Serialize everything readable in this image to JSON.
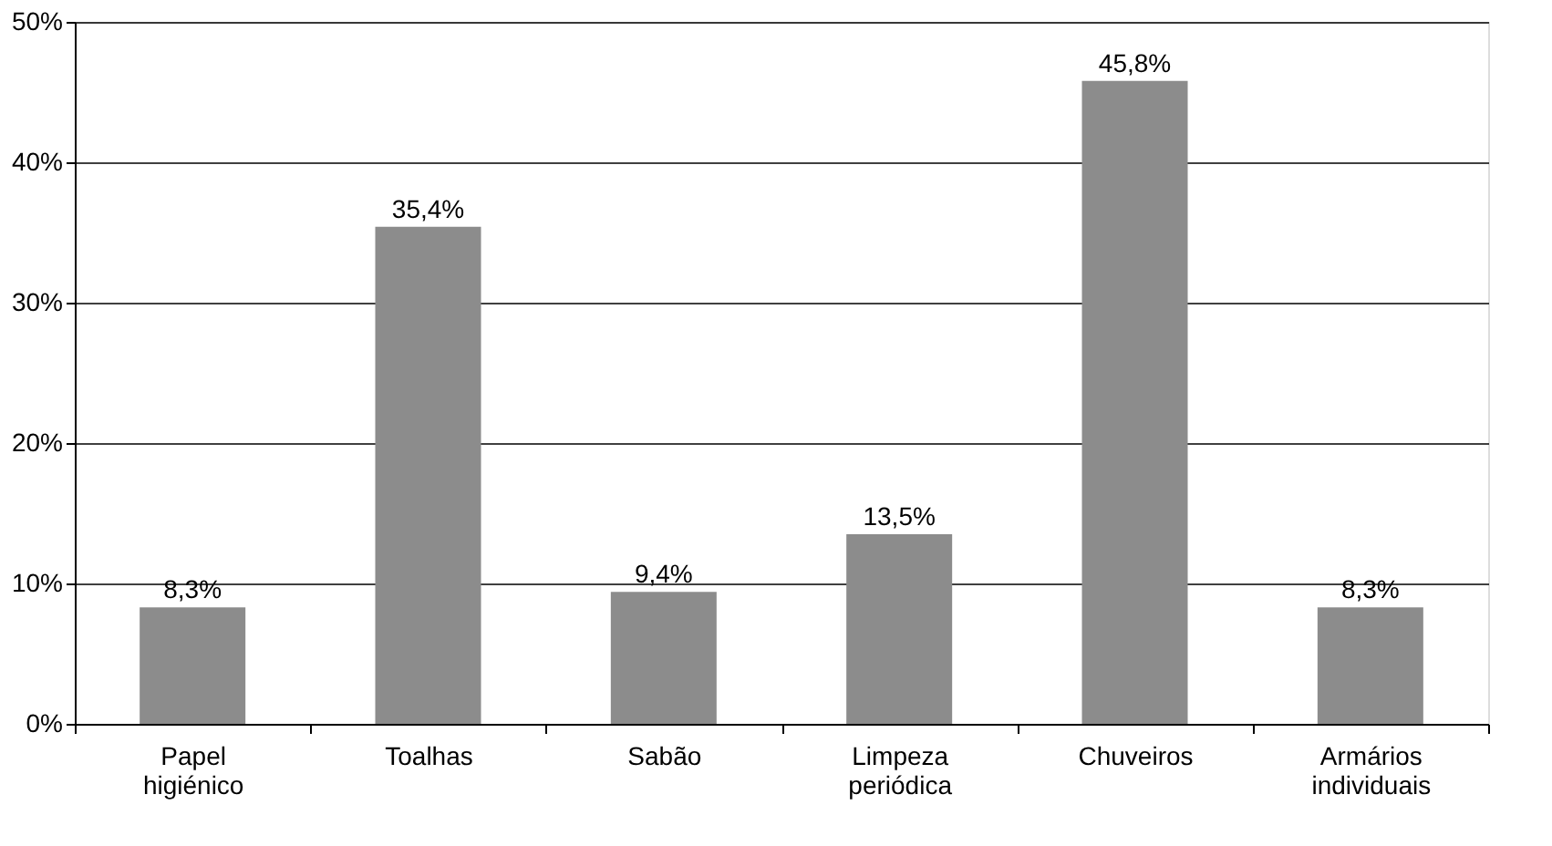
{
  "chart_data": {
    "type": "bar",
    "categories": [
      "Papel higiénico",
      "Toalhas",
      "Sabão",
      "Limpeza periódica",
      "Chuveiros",
      "Armários individuais"
    ],
    "values": [
      8.3,
      35.4,
      9.4,
      13.5,
      45.8,
      8.3
    ],
    "value_labels": [
      "8,3%",
      "35,4%",
      "9,4%",
      "13,5%",
      "45,8%",
      "8,3%"
    ],
    "color": "#8c8c8c",
    "ylim": [
      0,
      50
    ],
    "yticks": [
      {
        "value": 0,
        "label": "0%"
      },
      {
        "value": 10,
        "label": "10%"
      },
      {
        "value": 20,
        "label": "20%"
      },
      {
        "value": 30,
        "label": "30%"
      },
      {
        "value": 40,
        "label": "40%"
      },
      {
        "value": 50,
        "label": "50%"
      }
    ],
    "grid": "y"
  }
}
